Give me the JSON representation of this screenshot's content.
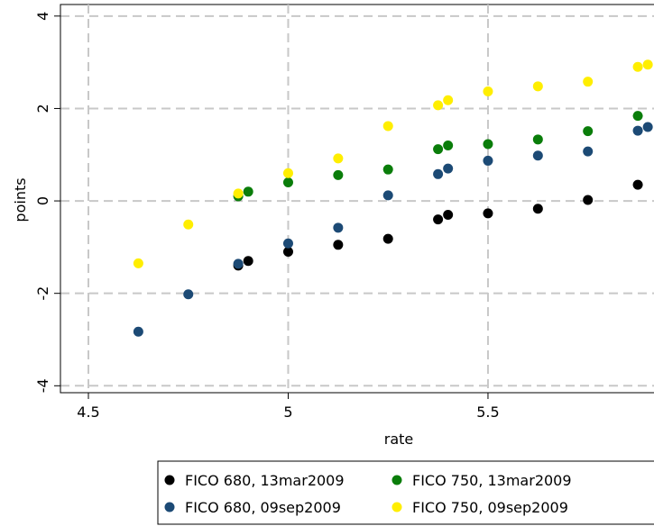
{
  "chart_data": {
    "type": "scatter",
    "xlabel": "rate",
    "ylabel": "points",
    "xlim": [
      4.43,
      5.92
    ],
    "ylim": [
      -4.15,
      4.25
    ],
    "xticks": [
      4.5,
      5,
      5.5
    ],
    "xtick_labels": [
      "4.5",
      "5",
      "5.5"
    ],
    "yticks": [
      -4,
      -2,
      0,
      2,
      4
    ],
    "ytick_labels": [
      "-4",
      "-2",
      "0",
      "2",
      "4"
    ],
    "grid": true,
    "legend_position": "bottom",
    "series": [
      {
        "name": "FICO 680, 13mar2009",
        "color": "#000000",
        "points": [
          [
            4.875,
            -1.4
          ],
          [
            4.9,
            -1.3
          ],
          [
            5.0,
            -1.1
          ],
          [
            5.125,
            -0.95
          ],
          [
            5.25,
            -0.82
          ],
          [
            5.375,
            -0.4
          ],
          [
            5.4,
            -0.3
          ],
          [
            5.5,
            -0.27
          ],
          [
            5.625,
            -0.17
          ],
          [
            5.75,
            0.02
          ],
          [
            5.875,
            0.35
          ]
        ]
      },
      {
        "name": "FICO 750, 13mar2009",
        "color": "#0a7d0a",
        "points": [
          [
            4.875,
            0.1
          ],
          [
            4.9,
            0.2
          ],
          [
            5.0,
            0.4
          ],
          [
            5.125,
            0.56
          ],
          [
            5.25,
            0.68
          ],
          [
            5.375,
            1.12
          ],
          [
            5.4,
            1.2
          ],
          [
            5.5,
            1.23
          ],
          [
            5.625,
            1.33
          ],
          [
            5.75,
            1.51
          ],
          [
            5.875,
            1.84
          ]
        ]
      },
      {
        "name": "FICO 680, 09sep2009",
        "color": "#1c4a75",
        "points": [
          [
            4.625,
            -2.83
          ],
          [
            4.75,
            -2.02
          ],
          [
            4.875,
            -1.36
          ],
          [
            5.0,
            -0.92
          ],
          [
            5.125,
            -0.58
          ],
          [
            5.25,
            0.12
          ],
          [
            5.375,
            0.58
          ],
          [
            5.4,
            0.7
          ],
          [
            5.5,
            0.87
          ],
          [
            5.625,
            0.98
          ],
          [
            5.75,
            1.07
          ],
          [
            5.875,
            1.52
          ],
          [
            5.9,
            1.6
          ]
        ]
      },
      {
        "name": "FICO 750, 09sep2009",
        "color": "#ffee00",
        "points": [
          [
            4.625,
            -1.35
          ],
          [
            4.75,
            -0.51
          ],
          [
            4.875,
            0.16
          ],
          [
            5.0,
            0.6
          ],
          [
            5.125,
            0.92
          ],
          [
            5.25,
            1.62
          ],
          [
            5.375,
            2.07
          ],
          [
            5.4,
            2.18
          ],
          [
            5.5,
            2.37
          ],
          [
            5.625,
            2.48
          ],
          [
            5.75,
            2.58
          ],
          [
            5.875,
            2.9
          ],
          [
            5.9,
            2.95
          ]
        ]
      }
    ],
    "legend_order": [
      0,
      1,
      2,
      3
    ]
  }
}
